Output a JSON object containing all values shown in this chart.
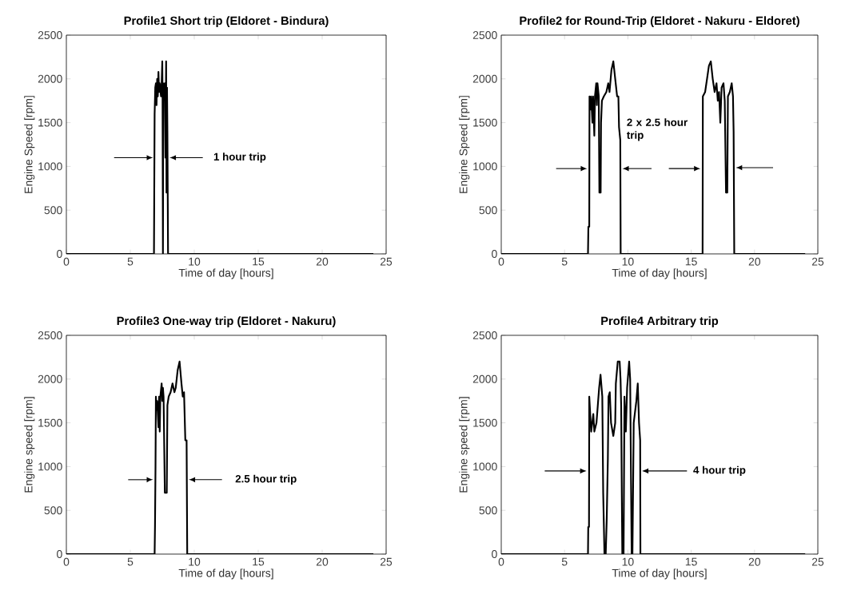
{
  "chart_data": [
    {
      "type": "line",
      "title": "Profile1 Short trip (Eldoret - Bindura)",
      "xlabel": "Time of day [hours]",
      "ylabel": "Engine Speed [rpm]",
      "xlim": [
        0,
        25
      ],
      "ylim": [
        0,
        2500
      ],
      "xticks": [
        0,
        5,
        10,
        15,
        20,
        25
      ],
      "yticks": [
        0,
        500,
        1000,
        1500,
        2000,
        2500
      ],
      "annotations": [
        "1 hour trip"
      ],
      "x": [
        0,
        6.85,
        6.9,
        6.95,
        7.0,
        7.05,
        7.1,
        7.15,
        7.2,
        7.25,
        7.3,
        7.4,
        7.45,
        7.5,
        7.52,
        7.55,
        7.58,
        7.65,
        7.7,
        7.75,
        7.8,
        7.83,
        7.87,
        7.9,
        7.95,
        24
      ],
      "series": [
        {
          "color": "#000000",
          "values": [
            0,
            0,
            1600,
            1900,
            1950,
            1700,
            2000,
            1800,
            2080,
            1850,
            1950,
            1800,
            1950,
            2200,
            1850,
            0,
            1950,
            1800,
            1950,
            1100,
            2200,
            700,
            1900,
            1400,
            0,
            0
          ]
        }
      ]
    },
    {
      "type": "line",
      "title": "Profile2 for Round-Trip (Eldoret - Nakuru - Eldoret)",
      "xlabel": "Time of day [hours]",
      "ylabel": "Engine Speed [rpm]",
      "xlim": [
        0,
        25
      ],
      "ylim": [
        0,
        2500
      ],
      "xticks": [
        0,
        5,
        10,
        15,
        20,
        25
      ],
      "yticks": [
        0,
        500,
        1000,
        1500,
        2000,
        2500
      ],
      "annotations": [
        {
          "text": "2 x 2.5 hour trip",
          "x": 9.6,
          "y": 975
        }
      ],
      "x": [
        0,
        6.85,
        6.88,
        6.95,
        6.97,
        7.05,
        7.1,
        7.2,
        7.25,
        7.35,
        7.4,
        7.5,
        7.55,
        7.6,
        7.7,
        7.75,
        7.85,
        7.88,
        7.95,
        8.1,
        8.3,
        8.45,
        8.55,
        8.7,
        8.85,
        9.0,
        9.15,
        9.25,
        9.3,
        9.4,
        9.43,
        15.9,
        15.92,
        16.1,
        16.25,
        16.4,
        16.55,
        16.7,
        16.85,
        17.0,
        17.1,
        17.2,
        17.3,
        17.4,
        17.55,
        17.65,
        17.75,
        17.85,
        17.9,
        18.05,
        18.2,
        18.3,
        18.35,
        18.4,
        24
      ],
      "series": [
        {
          "color": "#000000",
          "values": [
            0,
            0,
            310,
            310,
            1800,
            1650,
            1800,
            1500,
            1800,
            1350,
            1800,
            1950,
            1700,
            1950,
            1800,
            700,
            700,
            1500,
            1750,
            1800,
            1850,
            1950,
            1850,
            2100,
            2200,
            2000,
            1800,
            1800,
            1450,
            1300,
            0,
            0,
            1800,
            1850,
            2000,
            2150,
            2200,
            2000,
            1850,
            1950,
            1750,
            1850,
            1500,
            1900,
            1950,
            1750,
            700,
            700,
            1800,
            1850,
            1950,
            1800,
            1400,
            0,
            0
          ]
        }
      ]
    },
    {
      "type": "line",
      "title": "Profile3 One-way trip (Eldoret - Nakuru)",
      "xlabel": "Time of day [hours]",
      "ylabel": "Engine speed [rpm]",
      "xlim": [
        0,
        25
      ],
      "ylim": [
        0,
        2500
      ],
      "xticks": [
        0,
        5,
        10,
        15,
        20,
        25
      ],
      "yticks": [
        0,
        500,
        1000,
        1500,
        2000,
        2500
      ],
      "annotations": [
        "2.5 hour trip"
      ],
      "x": [
        0,
        6.9,
        6.93,
        6.97,
        7.0,
        7.05,
        7.1,
        7.2,
        7.25,
        7.3,
        7.35,
        7.45,
        7.5,
        7.55,
        7.6,
        7.7,
        7.85,
        7.9,
        8.0,
        8.15,
        8.3,
        8.45,
        8.55,
        8.7,
        8.85,
        9.0,
        9.1,
        9.2,
        9.3,
        9.4,
        9.45,
        24
      ],
      "series": [
        {
          "color": "#000000",
          "values": [
            0,
            0,
            320,
            1000,
            1800,
            1650,
            1750,
            1450,
            1800,
            1400,
            1800,
            1950,
            1750,
            1900,
            1800,
            700,
            700,
            1700,
            1800,
            1850,
            1950,
            1850,
            1900,
            2100,
            2200,
            1950,
            1800,
            1850,
            1300,
            1300,
            0,
            0
          ]
        }
      ]
    },
    {
      "type": "line",
      "title": "Profile4 Arbitrary trip",
      "xlabel": "Time of day [hours]",
      "ylabel": "Engine speed [rpm]",
      "xlim": [
        0,
        25
      ],
      "ylim": [
        0,
        2500
      ],
      "xticks": [
        0,
        5,
        10,
        15,
        20,
        25
      ],
      "yticks": [
        0,
        500,
        1000,
        1500,
        2000,
        2500
      ],
      "annotations": [
        "4 hour trip"
      ],
      "x": [
        0,
        6.85,
        6.87,
        6.93,
        6.95,
        7.1,
        7.27,
        7.35,
        7.52,
        7.73,
        7.84,
        7.98,
        8.05,
        8.15,
        8.25,
        8.33,
        8.42,
        8.47,
        8.57,
        8.67,
        8.85,
        9.0,
        9.05,
        9.2,
        9.35,
        9.42,
        9.47,
        9.52,
        9.56,
        9.66,
        9.73,
        9.84,
        9.94,
        10.1,
        10.18,
        10.25,
        10.3,
        10.36,
        10.46,
        10.67,
        10.78,
        10.88,
        10.97,
        10.99,
        24
      ],
      "series": [
        {
          "color": "#000000",
          "values": [
            0,
            0,
            310,
            310,
            1800,
            1400,
            1600,
            1400,
            1500,
            1900,
            2050,
            1800,
            700,
            0,
            0,
            400,
            1100,
            1800,
            1850,
            1500,
            1350,
            1500,
            1950,
            2200,
            2200,
            2000,
            1700,
            700,
            0,
            0,
            1800,
            1400,
            1900,
            2200,
            2000,
            800,
            0,
            0,
            1500,
            1750,
            1950,
            1500,
            1300,
            0,
            0
          ]
        }
      ]
    }
  ]
}
